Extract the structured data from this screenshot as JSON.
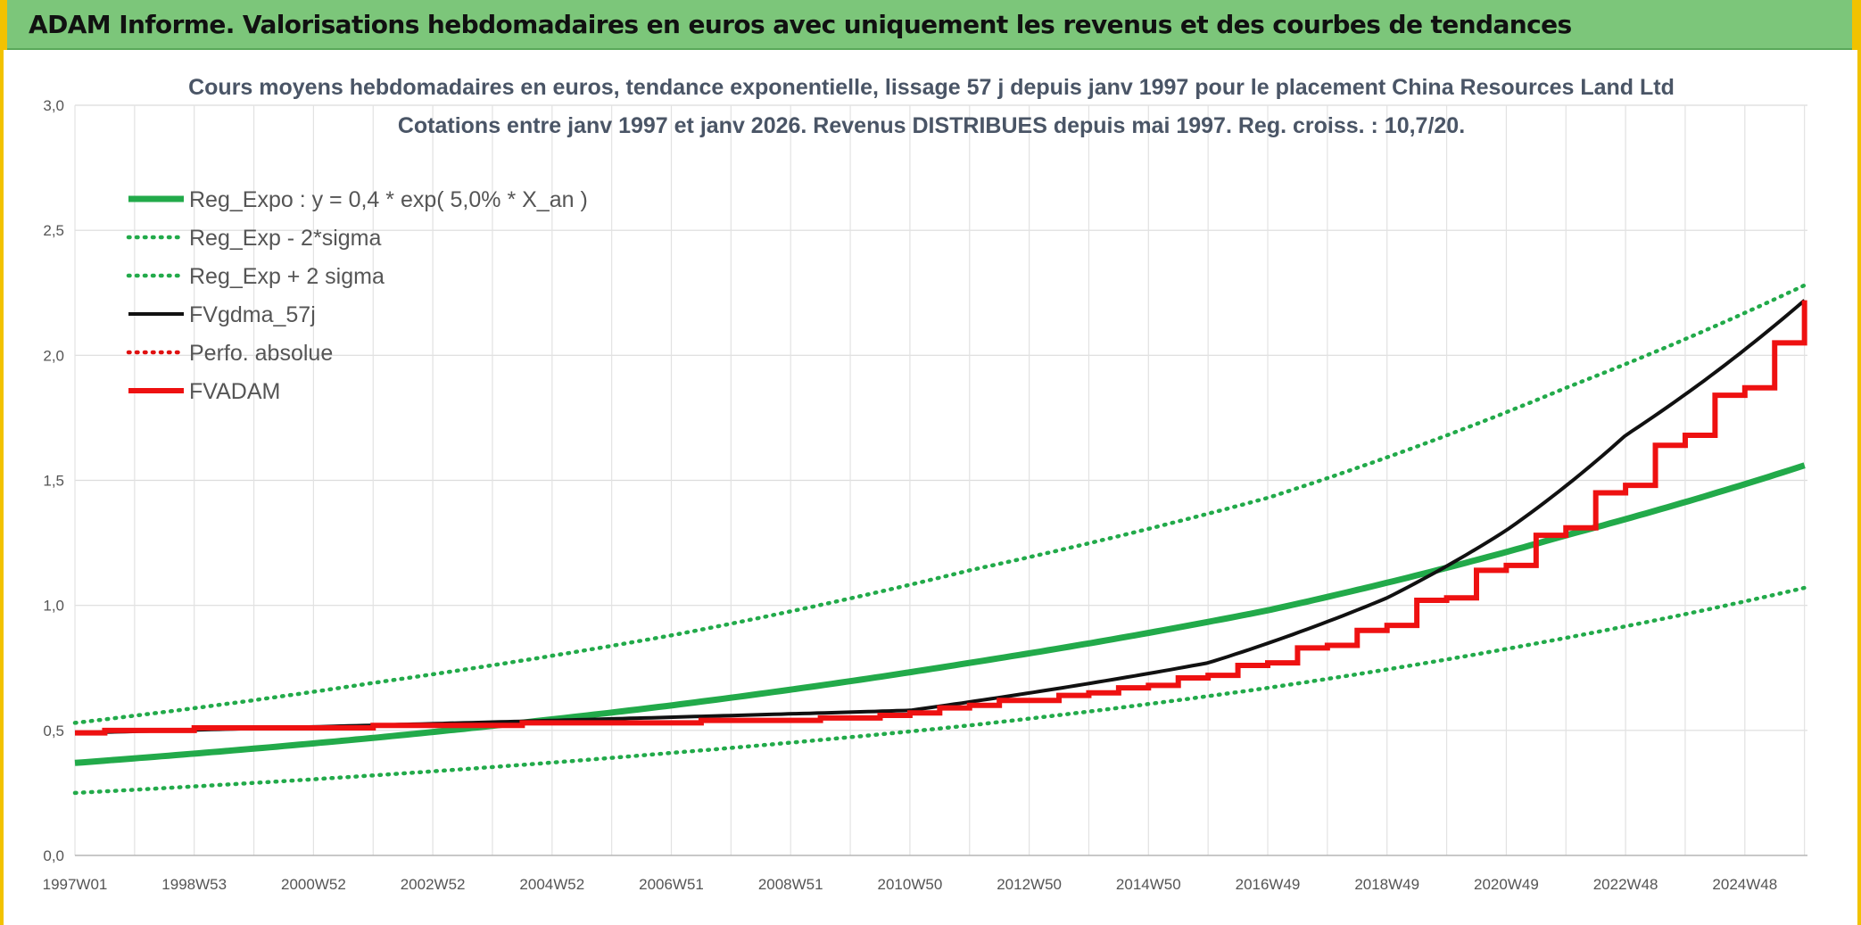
{
  "banner": {
    "title": "ADAM Informe. Valorisations hebdomadaires en euros avec uniquement les revenus et des courbes de tendances"
  },
  "chart_data": {
    "type": "line",
    "title_line1": "Cours moyens hebdomadaires en euros, tendance exponentielle, lissage 57 j depuis janv 1997 pour le placement China Resources Land Ltd",
    "title_line2": "Cotations entre janv 1997 et janv 2026. Revenus DISTRIBUES depuis mai 1997. Reg. croiss. : 10,7/20.",
    "xlabel": "",
    "ylabel": "",
    "ylim": [
      0,
      3
    ],
    "xlim": [
      1997.0,
      2026.05
    ],
    "y_ticks": [
      "0,0",
      "0,5",
      "1,0",
      "1,5",
      "2,0",
      "2,5",
      "3,0"
    ],
    "x_ticks": [
      {
        "label": "1997W01",
        "pos": 1997.0
      },
      {
        "label": "1998W53",
        "pos": 1999.0
      },
      {
        "label": "2000W52",
        "pos": 2001.0
      },
      {
        "label": "2002W52",
        "pos": 2003.0
      },
      {
        "label": "2004W52",
        "pos": 2005.0
      },
      {
        "label": "2006W51",
        "pos": 2007.0
      },
      {
        "label": "2008W51",
        "pos": 2009.0
      },
      {
        "label": "2010W50",
        "pos": 2011.0
      },
      {
        "label": "2012W50",
        "pos": 2013.0
      },
      {
        "label": "2014W50",
        "pos": 2015.0
      },
      {
        "label": "2016W49",
        "pos": 2017.0
      },
      {
        "label": "2018W49",
        "pos": 2019.0
      },
      {
        "label": "2020W49",
        "pos": 2021.0
      },
      {
        "label": "2022W48",
        "pos": 2023.0
      },
      {
        "label": "2024W48",
        "pos": 2025.0
      }
    ],
    "grid": true,
    "legend_position": "top-left",
    "series": [
      {
        "name": "Reg_Expo : y = 0,4 * exp( 5,0% *  X_an )",
        "color": "#22aa4a",
        "style": "solid-thick",
        "x": [
          1997,
          2002,
          2007,
          2012,
          2017,
          2022,
          2026
        ],
        "y": [
          0.37,
          0.47,
          0.6,
          0.77,
          0.98,
          1.28,
          1.56
        ]
      },
      {
        "name": "Reg_Exp - 2*sigma",
        "color": "#22aa4a",
        "style": "dotted",
        "x": [
          1997,
          2002,
          2007,
          2012,
          2017,
          2022,
          2026
        ],
        "y": [
          0.25,
          0.32,
          0.41,
          0.52,
          0.67,
          0.87,
          1.07
        ]
      },
      {
        "name": "Reg_Exp + 2 sigma",
        "color": "#22aa4a",
        "style": "dotted",
        "x": [
          1997,
          2002,
          2007,
          2012,
          2017,
          2022,
          2026
        ],
        "y": [
          0.53,
          0.69,
          0.88,
          1.14,
          1.43,
          1.87,
          2.28
        ]
      },
      {
        "name": "FVgdma_57j",
        "color": "#111111",
        "style": "solid",
        "x": [
          1997,
          2011,
          2016,
          2019,
          2021,
          2023,
          2026
        ],
        "y": [
          0.49,
          0.58,
          0.77,
          1.03,
          1.3,
          1.68,
          2.22
        ]
      },
      {
        "name": "Perfo. absolue",
        "color": "#e01010",
        "style": "dotted",
        "x": [],
        "y": []
      },
      {
        "name": "FVADAM",
        "color": "#ee1111",
        "style": "step-thick",
        "x": [
          1997.0,
          1997.5,
          1998.0,
          1999.0,
          2000.5,
          2002.0,
          2003.3,
          2004.5,
          2005.5,
          2006.5,
          2007.5,
          2008.5,
          2009.5,
          2010.5,
          2011.0,
          2011.5,
          2012.0,
          2012.5,
          2013.0,
          2013.5,
          2014.0,
          2014.5,
          2015.0,
          2015.5,
          2016.0,
          2016.5,
          2017.0,
          2017.5,
          2018.0,
          2018.5,
          2019.0,
          2019.5,
          2020.0,
          2020.5,
          2021.0,
          2021.5,
          2022.0,
          2022.5,
          2023.0,
          2023.5,
          2024.0,
          2024.5,
          2025.0,
          2025.5,
          2026.0
        ],
        "y": [
          0.49,
          0.5,
          0.5,
          0.51,
          0.51,
          0.52,
          0.52,
          0.53,
          0.53,
          0.53,
          0.54,
          0.54,
          0.55,
          0.56,
          0.57,
          0.59,
          0.6,
          0.62,
          0.62,
          0.64,
          0.65,
          0.67,
          0.68,
          0.71,
          0.72,
          0.76,
          0.77,
          0.83,
          0.84,
          0.9,
          0.92,
          1.02,
          1.03,
          1.14,
          1.16,
          1.28,
          1.31,
          1.45,
          1.48,
          1.64,
          1.68,
          1.84,
          1.87,
          2.05,
          2.22
        ]
      }
    ]
  }
}
